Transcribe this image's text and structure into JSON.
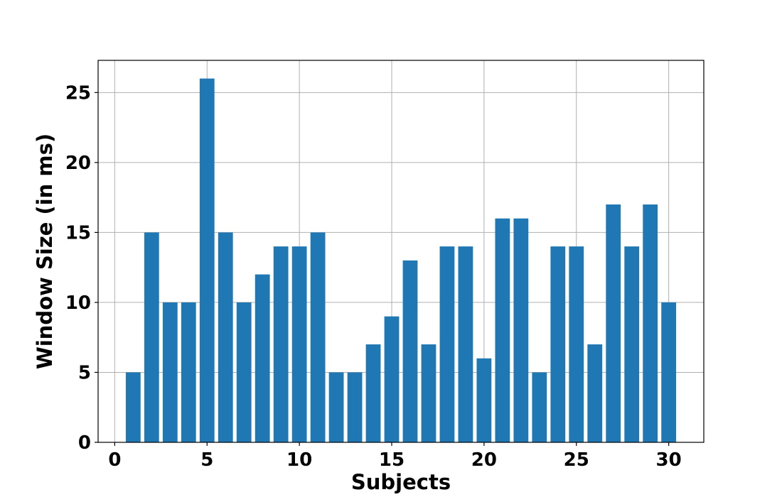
{
  "chart_data": {
    "type": "bar",
    "title": "",
    "xlabel": "Subjects",
    "ylabel": "Window Size (in ms)",
    "categories": [
      1,
      2,
      3,
      4,
      5,
      6,
      7,
      8,
      9,
      10,
      11,
      12,
      13,
      14,
      15,
      16,
      17,
      18,
      19,
      20,
      21,
      22,
      23,
      24,
      25,
      26,
      27,
      28,
      29,
      30
    ],
    "values": [
      5,
      15,
      10,
      10,
      26,
      15,
      10,
      12,
      14,
      14,
      15,
      5,
      5,
      7,
      9,
      13,
      7,
      14,
      14,
      6,
      16,
      16,
      5,
      14,
      14,
      7,
      17,
      14,
      17,
      10
    ],
    "xlim": [
      -0.9,
      31.9
    ],
    "ylim": [
      0,
      27.3
    ],
    "xticks": [
      0,
      5,
      10,
      15,
      20,
      25,
      30
    ],
    "xtick_labels": [
      "0",
      "5",
      "10",
      "15",
      "20",
      "25",
      "30"
    ],
    "yticks": [
      0,
      5,
      10,
      15,
      20,
      25
    ],
    "ytick_labels": [
      "0",
      "5",
      "10",
      "15",
      "20",
      "25"
    ],
    "bar_color": "#1f77b4",
    "grid": true,
    "legend": "none"
  }
}
